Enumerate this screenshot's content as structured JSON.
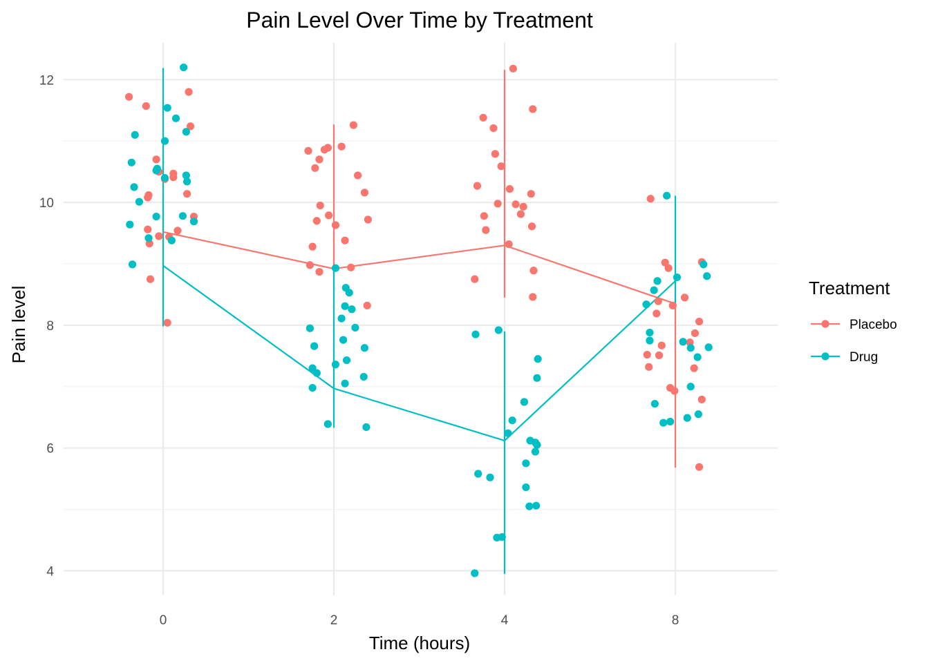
{
  "chart_data": {
    "type": "scatter",
    "title": "Pain Level Over Time by Treatment",
    "xlabel": "Time (hours)",
    "ylabel": "Pain level",
    "categories": [
      "0",
      "2",
      "4",
      "8"
    ],
    "ylim": [
      3.6,
      12.6
    ],
    "yticks": [
      4,
      6,
      8,
      10,
      12
    ],
    "grid": true,
    "legend": {
      "title": "Treatment",
      "position": "right"
    },
    "series": [
      {
        "name": "Placebo",
        "color": "#F8766D",
        "means": [
          9.52,
          8.92,
          9.3,
          8.35
        ],
        "ci_low": [
          8.05,
          6.35,
          8.45,
          5.68
        ],
        "ci_high": [
          10.15,
          11.27,
          12.16,
          8.85
        ],
        "points": [
          [
            -0.4,
            11.72
          ],
          [
            -0.2,
            11.57
          ],
          [
            -0.08,
            10.7
          ],
          [
            -0.05,
            10.5
          ],
          [
            0.02,
            10.38
          ],
          [
            0.12,
            10.47
          ],
          [
            0.12,
            10.41
          ],
          [
            -0.17,
            10.12
          ],
          [
            -0.18,
            10.08
          ],
          [
            0.28,
            10.14
          ],
          [
            0.36,
            9.77
          ],
          [
            0.17,
            9.54
          ],
          [
            -0.18,
            9.56
          ],
          [
            -0.05,
            9.45
          ],
          [
            0.07,
            9.44
          ],
          [
            -0.16,
            9.33
          ],
          [
            -0.15,
            8.75
          ],
          [
            0.05,
            8.04
          ],
          [
            0.3,
            11.8
          ],
          [
            0.32,
            11.24
          ],
          [
            1.7,
            10.84
          ],
          [
            1.89,
            10.86
          ],
          [
            1.93,
            10.89
          ],
          [
            2.09,
            10.91
          ],
          [
            1.83,
            10.7
          ],
          [
            1.78,
            10.56
          ],
          [
            2.23,
            11.26
          ],
          [
            2.28,
            10.44
          ],
          [
            2.36,
            10.16
          ],
          [
            1.84,
            9.95
          ],
          [
            1.94,
            9.79
          ],
          [
            1.8,
            9.7
          ],
          [
            2.4,
            9.72
          ],
          [
            2.02,
            9.63
          ],
          [
            2.13,
            9.38
          ],
          [
            1.75,
            9.28
          ],
          [
            1.72,
            8.98
          ],
          [
            2.2,
            8.94
          ],
          [
            1.83,
            8.87
          ],
          [
            2.39,
            8.32
          ],
          [
            3.68,
            10.27
          ],
          [
            3.75,
            11.38
          ],
          [
            3.87,
            11.21
          ],
          [
            3.89,
            10.79
          ],
          [
            3.96,
            10.59
          ],
          [
            4.06,
            10.22
          ],
          [
            4.1,
            12.18
          ],
          [
            4.31,
            10.14
          ],
          [
            4.13,
            9.97
          ],
          [
            4.22,
            9.93
          ],
          [
            3.92,
            9.98
          ],
          [
            3.76,
            9.78
          ],
          [
            4.19,
            9.81
          ],
          [
            3.78,
            9.55
          ],
          [
            4.32,
            9.61
          ],
          [
            4.05,
            9.32
          ],
          [
            4.34,
            8.89
          ],
          [
            3.65,
            8.75
          ],
          [
            4.33,
            8.46
          ],
          [
            4.33,
            11.52
          ],
          [
            7.71,
            10.06
          ],
          [
            7.88,
            9.02
          ],
          [
            7.92,
            8.93
          ],
          [
            7.8,
            8.39
          ],
          [
            7.78,
            8.19
          ],
          [
            8.11,
            8.45
          ],
          [
            7.97,
            8.32
          ],
          [
            8.31,
            9.03
          ],
          [
            8.28,
            8.06
          ],
          [
            8.23,
            7.87
          ],
          [
            8.17,
            7.72
          ],
          [
            7.84,
            7.67
          ],
          [
            7.67,
            7.52
          ],
          [
            7.81,
            7.51
          ],
          [
            7.69,
            7.32
          ],
          [
            8.22,
            7.3
          ],
          [
            7.94,
            6.98
          ],
          [
            7.99,
            6.93
          ],
          [
            8.31,
            6.79
          ],
          [
            8.28,
            5.69
          ]
        ]
      },
      {
        "name": "Drug",
        "color": "#00BFC4",
        "means": [
          8.97,
          6.97,
          6.12,
          8.72
        ],
        "ci_low": [
          7.98,
          6.33,
          3.95,
          8.34
        ],
        "ci_high": [
          12.19,
          8.9,
          7.9,
          10.11
        ],
        "points": [
          [
            0.24,
            12.2
          ],
          [
            0.05,
            11.54
          ],
          [
            0.15,
            11.37
          ],
          [
            -0.33,
            11.1
          ],
          [
            0.27,
            11.15
          ],
          [
            0.02,
            11.0
          ],
          [
            -0.37,
            10.65
          ],
          [
            -0.07,
            10.55
          ],
          [
            -0.08,
            10.52
          ],
          [
            0.27,
            10.44
          ],
          [
            0.02,
            10.4
          ],
          [
            0.28,
            10.34
          ],
          [
            -0.34,
            10.25
          ],
          [
            -0.28,
            10.01
          ],
          [
            -0.08,
            9.77
          ],
          [
            0.23,
            9.78
          ],
          [
            0.36,
            9.69
          ],
          [
            -0.39,
            9.64
          ],
          [
            -0.17,
            9.42
          ],
          [
            0.1,
            9.38
          ],
          [
            -0.36,
            8.99
          ],
          [
            2.02,
            8.93
          ],
          [
            2.14,
            8.61
          ],
          [
            2.18,
            8.53
          ],
          [
            2.13,
            8.31
          ],
          [
            2.21,
            8.26
          ],
          [
            2.09,
            8.11
          ],
          [
            1.72,
            7.95
          ],
          [
            2.25,
            7.96
          ],
          [
            2.11,
            7.76
          ],
          [
            1.77,
            7.66
          ],
          [
            2.36,
            7.63
          ],
          [
            2.15,
            7.43
          ],
          [
            2.02,
            7.36
          ],
          [
            1.75,
            7.3
          ],
          [
            1.8,
            7.22
          ],
          [
            2.35,
            7.16
          ],
          [
            2.13,
            7.05
          ],
          [
            1.75,
            6.98
          ],
          [
            1.93,
            6.39
          ],
          [
            2.38,
            6.34
          ],
          [
            3.66,
            7.85
          ],
          [
            3.93,
            7.92
          ],
          [
            4.39,
            7.45
          ],
          [
            4.38,
            7.14
          ],
          [
            4.23,
            6.75
          ],
          [
            4.09,
            6.45
          ],
          [
            4.04,
            6.24
          ],
          [
            4.3,
            6.12
          ],
          [
            4.36,
            6.09
          ],
          [
            4.38,
            6.05
          ],
          [
            4.36,
            5.94
          ],
          [
            4.25,
            5.75
          ],
          [
            3.69,
            5.58
          ],
          [
            3.83,
            5.52
          ],
          [
            4.25,
            5.36
          ],
          [
            4.29,
            5.05
          ],
          [
            4.37,
            5.06
          ],
          [
            3.97,
            4.55
          ],
          [
            3.91,
            4.54
          ],
          [
            3.65,
            3.96
          ],
          [
            7.9,
            10.11
          ],
          [
            8.33,
            8.99
          ],
          [
            8.37,
            8.8
          ],
          [
            8.02,
            8.78
          ],
          [
            7.79,
            8.72
          ],
          [
            7.75,
            8.57
          ],
          [
            7.66,
            8.34
          ],
          [
            7.7,
            7.88
          ],
          [
            7.7,
            7.75
          ],
          [
            8.09,
            7.73
          ],
          [
            8.39,
            7.64
          ],
          [
            8.18,
            7.63
          ],
          [
            8.26,
            7.48
          ],
          [
            8.18,
            7.0
          ],
          [
            7.76,
            6.72
          ],
          [
            7.86,
            6.41
          ],
          [
            7.94,
            6.43
          ],
          [
            8.14,
            6.49
          ],
          [
            8.27,
            6.55
          ]
        ]
      }
    ]
  }
}
